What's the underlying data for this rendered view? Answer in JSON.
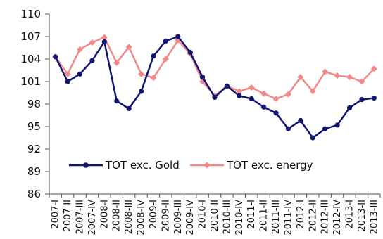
{
  "chart_data": {
    "type": "line",
    "categories": [
      "2007-I",
      "2007-II",
      "2007-III",
      "2007-IV",
      "2008-I",
      "2008-II",
      "2008-III",
      "2008-IV",
      "2009-I",
      "2009-II",
      "2009-III",
      "2009-IV",
      "2010-I",
      "2010-II",
      "2010-III",
      "2010-IV",
      "2011-I",
      "2011-II",
      "2011-III",
      "2011-IV",
      "2012-I",
      "2012-II",
      "2012-III",
      "2012-IV",
      "2013-I",
      "2013-II",
      "2013-III"
    ],
    "series": [
      {
        "name": "TOT exc. Gold",
        "color": "#10156e",
        "values": [
          104.3,
          101.0,
          102.0,
          103.8,
          106.3,
          98.4,
          97.4,
          99.7,
          104.4,
          106.4,
          107.0,
          104.9,
          101.6,
          98.9,
          100.4,
          99.1,
          98.7,
          97.6,
          96.8,
          94.7,
          95.8,
          93.5,
          94.7,
          95.2,
          97.5,
          98.6,
          98.8
        ]
      },
      {
        "name": "TOT exc. energy",
        "color": "#f08a8a",
        "values": [
          104.3,
          102.0,
          105.3,
          106.2,
          106.9,
          103.5,
          105.6,
          102.0,
          101.5,
          104.0,
          106.5,
          104.7,
          101.0,
          99.1,
          100.4,
          99.7,
          100.2,
          99.4,
          98.7,
          99.3,
          101.6,
          99.7,
          102.3,
          101.8,
          101.6,
          101.0,
          102.7
        ]
      }
    ],
    "ylim": [
      86,
      110
    ],
    "yticks": [
      86,
      89,
      92,
      95,
      98,
      101,
      104,
      107,
      110
    ],
    "grid": false,
    "legend_position": "inside-bottom"
  }
}
